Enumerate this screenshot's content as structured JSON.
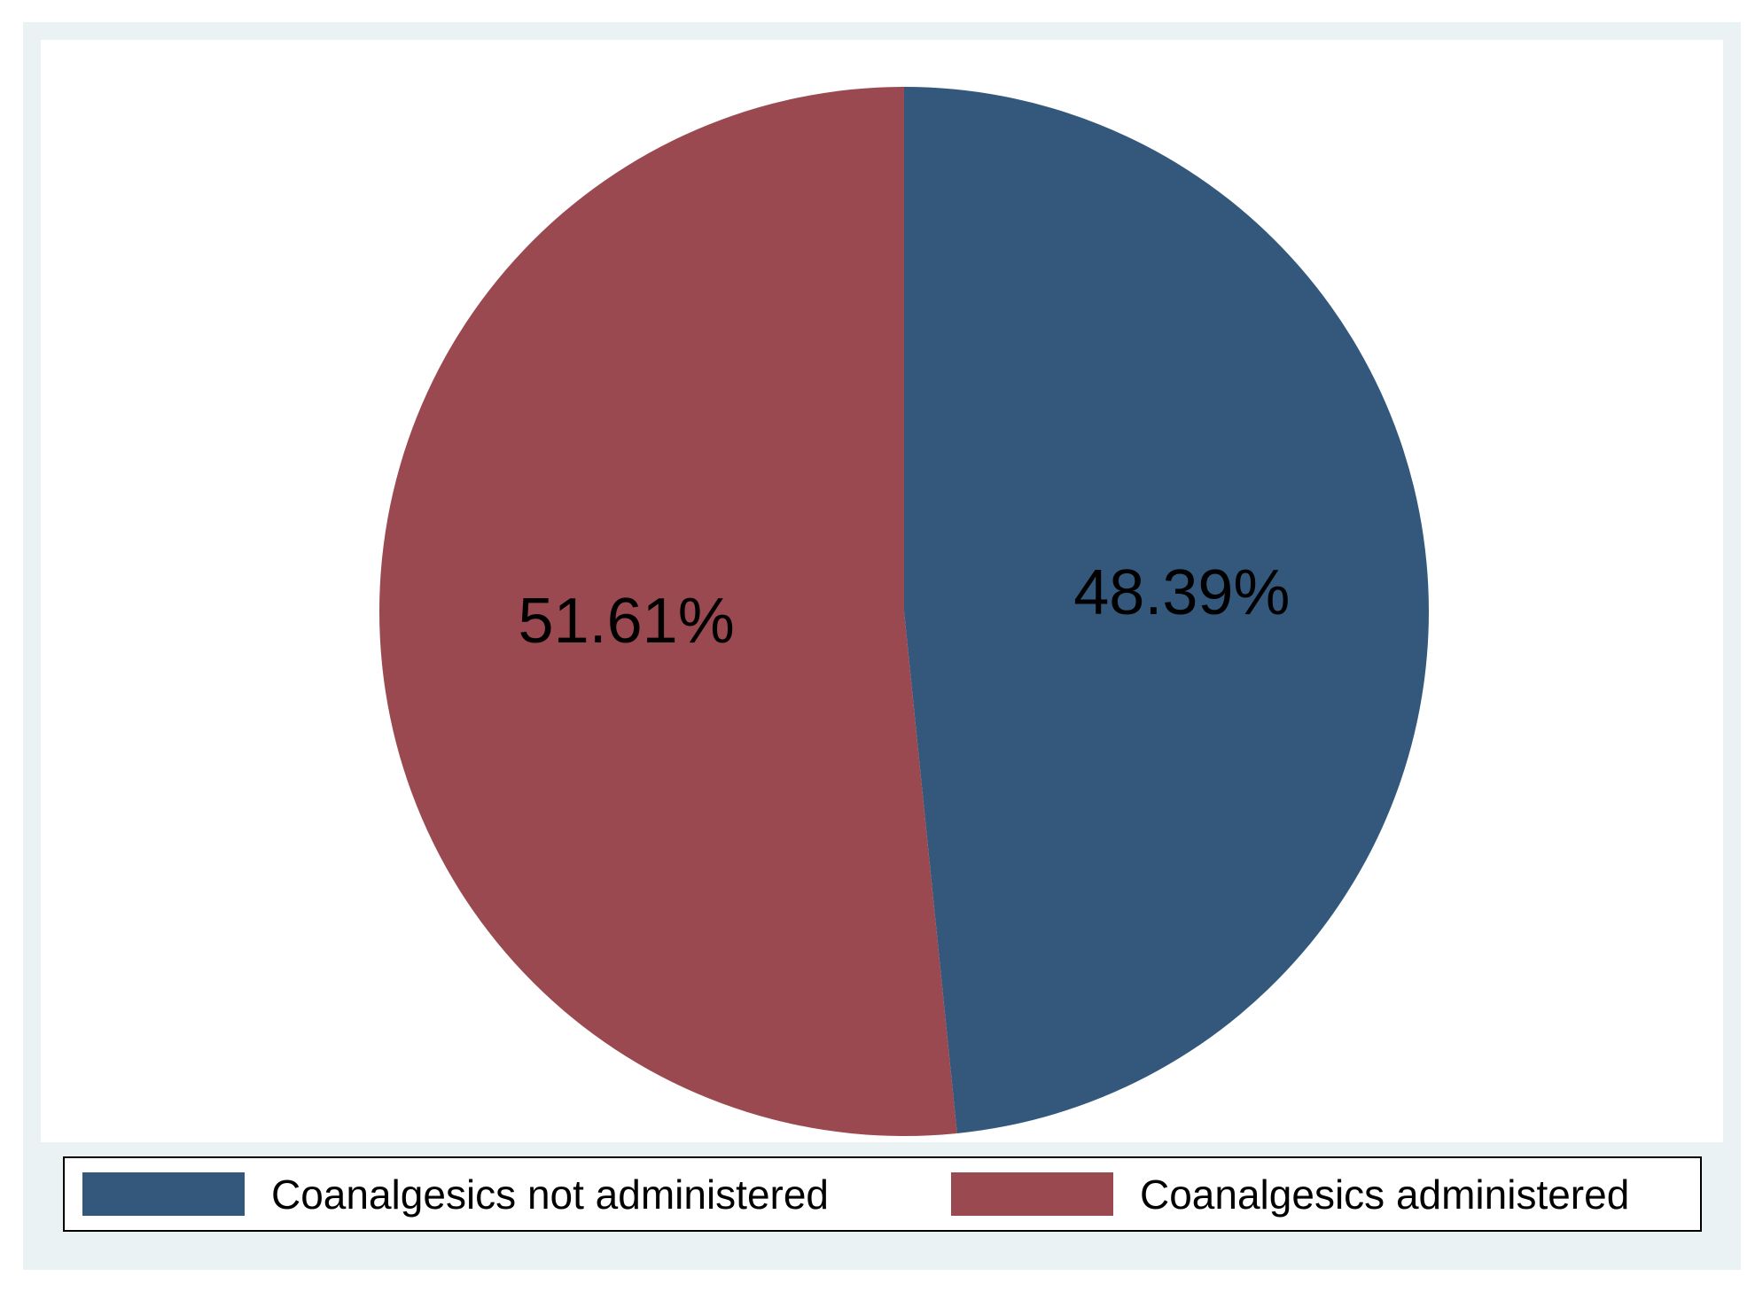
{
  "chart_data": {
    "type": "pie",
    "slices": [
      {
        "label": "Coanalgesics not administered",
        "value": 48.39,
        "value_label": "48.39%",
        "color": "#33587c"
      },
      {
        "label": "Coanalgesics administered",
        "value": 51.61,
        "value_label": "51.61%",
        "color": "#9a4950"
      }
    ],
    "start_angle": "12 o'clock",
    "direction": "clockwise",
    "legend_position": "bottom"
  }
}
